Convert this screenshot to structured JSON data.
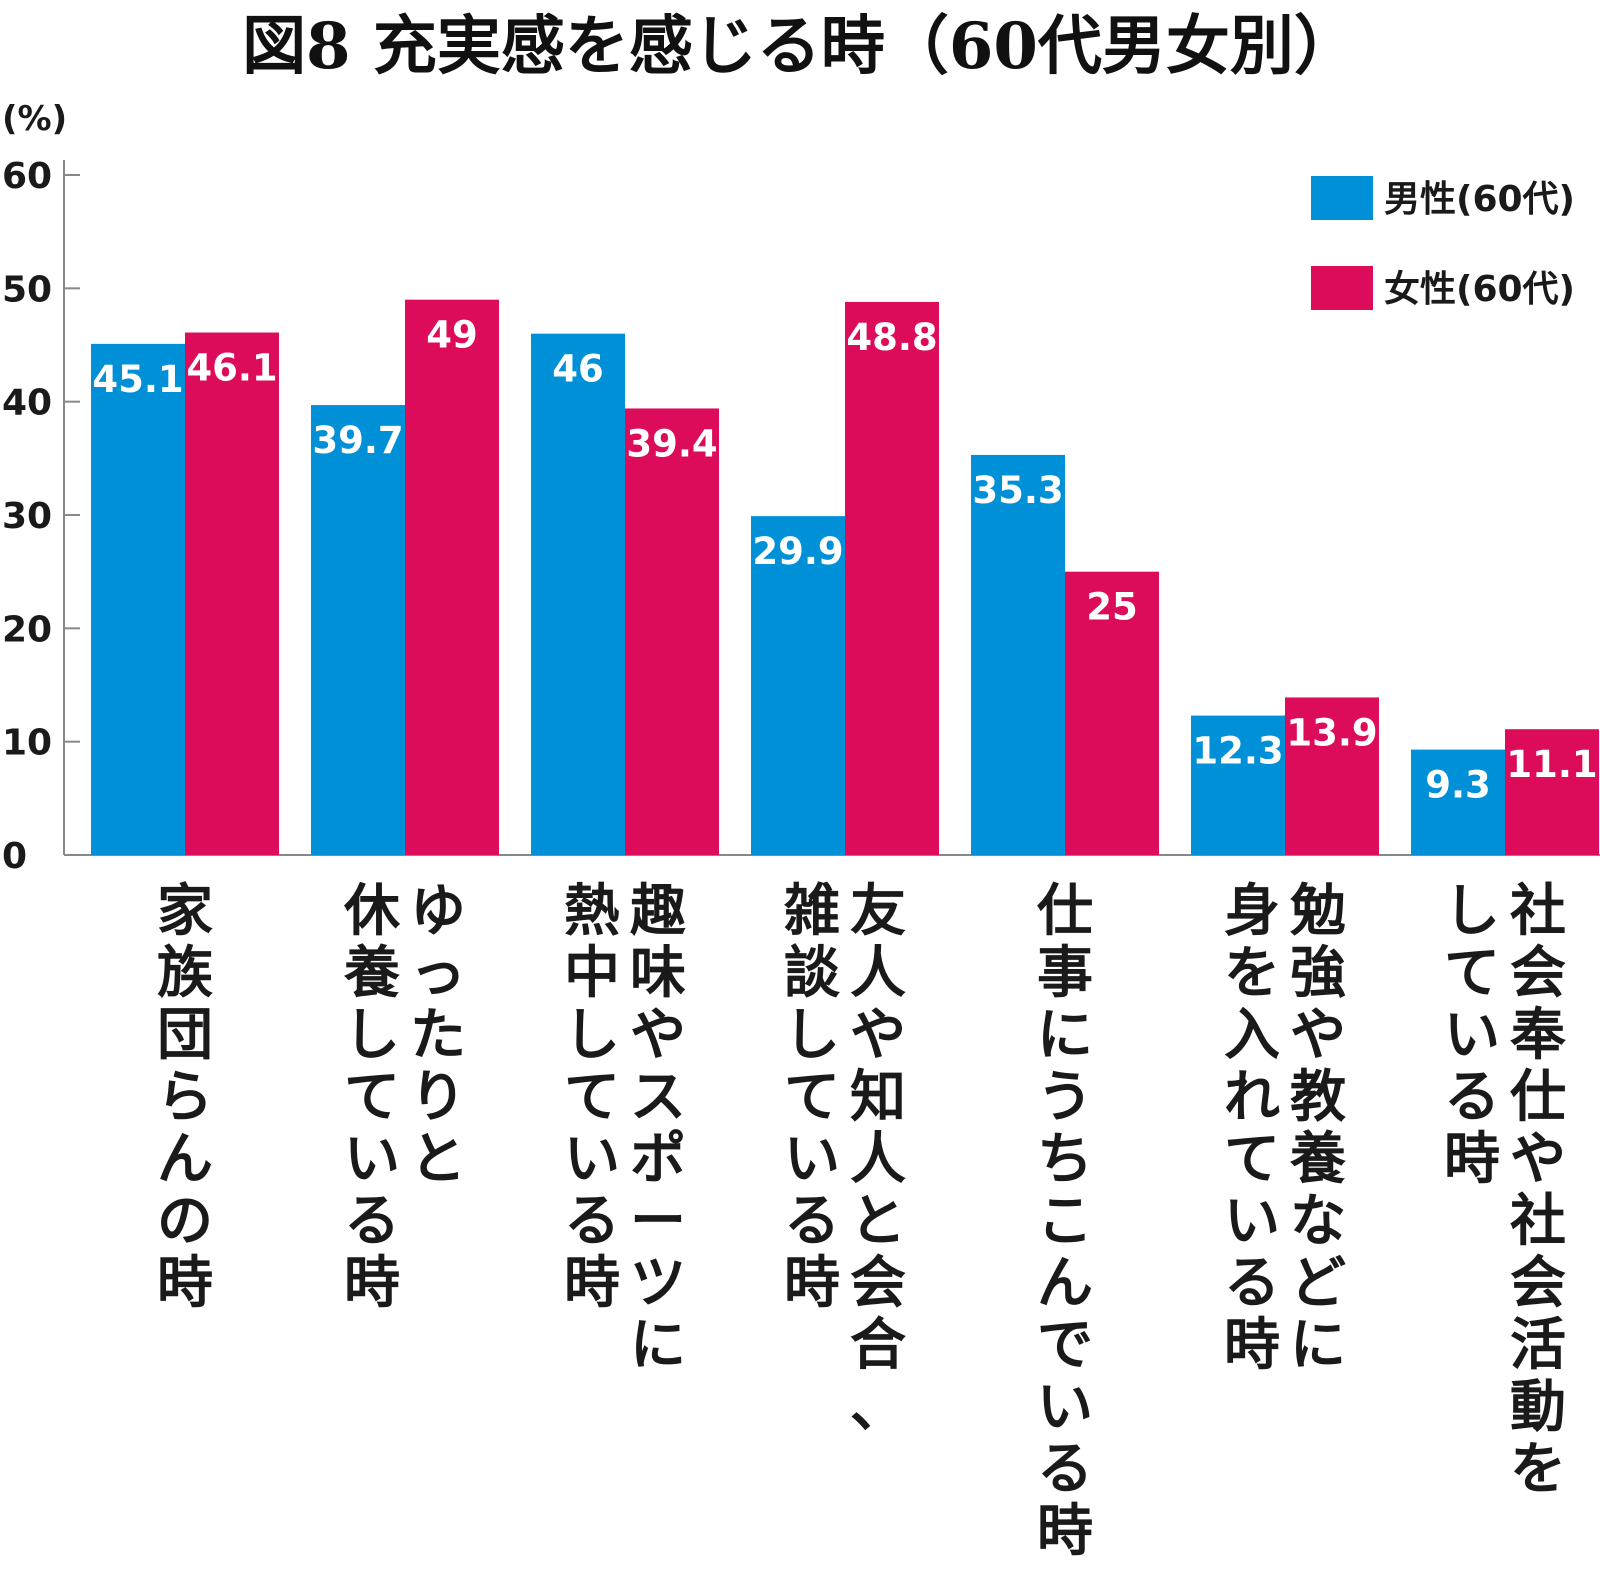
{
  "chart_data": {
    "type": "bar",
    "title": "図8 充実感を感じる時（60代男女別）",
    "unit_label": "(%)",
    "ylim": [
      0,
      60
    ],
    "yticks": [
      0,
      10,
      20,
      30,
      40,
      50,
      60
    ],
    "legend_position": "top-right",
    "grid": false,
    "categories": [
      [
        "家族団らんの時"
      ],
      [
        "ゆったりと",
        "休養している時"
      ],
      [
        "趣味やスポーツに",
        "熱中している時"
      ],
      [
        "友人や知人と会合、",
        "雑談している時"
      ],
      [
        "仕事にうちこんでいる時"
      ],
      [
        "勉強や教養などに",
        "身を入れている時"
      ],
      [
        "社会奉仕や社会活動を",
        "している時"
      ]
    ],
    "series": [
      {
        "name": "男性(60代)",
        "color": "#0090d8",
        "values": [
          45.1,
          39.7,
          46,
          29.9,
          35.3,
          12.3,
          9.3
        ]
      },
      {
        "name": "女性(60代)",
        "color": "#dc0c5a",
        "values": [
          46.1,
          49,
          39.4,
          48.8,
          25,
          13.9,
          11.1
        ]
      }
    ]
  }
}
